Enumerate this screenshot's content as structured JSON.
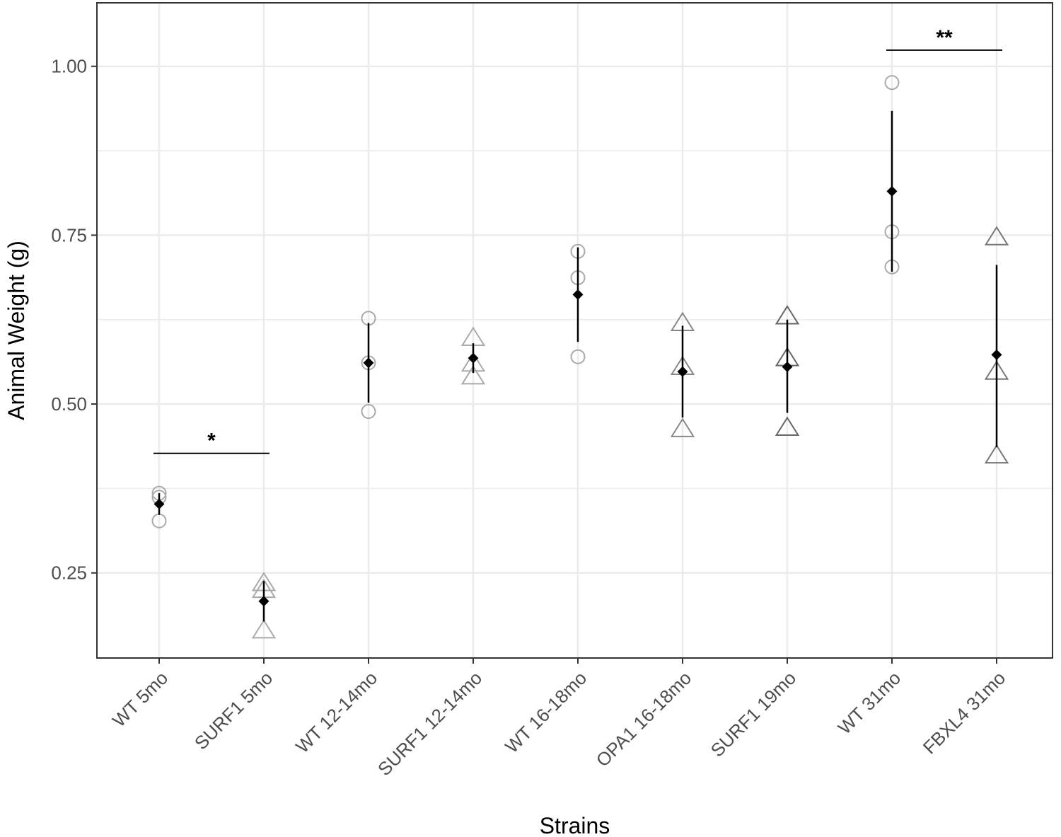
{
  "chart_data": {
    "type": "scatter",
    "title": "",
    "xlabel": "Strains",
    "ylabel": "Animal Weight (g)",
    "ylim": [
      0.124,
      1.094
    ],
    "yticks": [
      0.25,
      0.5,
      0.75,
      1.0
    ],
    "ytick_labels": [
      "0.25",
      "0.50",
      "0.75",
      "1.00"
    ],
    "grid": true,
    "categories": [
      "WT 5mo",
      "SURF1 5mo",
      "WT 12-14mo",
      "SURF1 12-14mo",
      "WT 16-18mo",
      "OPA1 16-18mo",
      "SURF1 19mo",
      "WT 31mo",
      "FBXL4 31mo"
    ],
    "groups": [
      {
        "category": "WT 5mo",
        "marker": "circle",
        "points": [
          0.368,
          0.362,
          0.327
        ],
        "mean": 0.352,
        "error": [
          0.336,
          0.368
        ],
        "color": "#aaaaaa"
      },
      {
        "category": "SURF1 5mo",
        "marker": "triangle",
        "points": [
          0.235,
          0.225,
          0.165
        ],
        "mean": 0.208,
        "error": [
          0.178,
          0.238
        ],
        "color": "#aaaaaa"
      },
      {
        "category": "WT 12-14mo",
        "marker": "circle",
        "points": [
          0.627,
          0.561,
          0.489
        ],
        "mean": 0.561,
        "error": [
          0.502,
          0.62
        ],
        "color": "#aaaaaa"
      },
      {
        "category": "SURF1 12-14mo",
        "marker": "triangle",
        "points": [
          0.598,
          0.56,
          0.541
        ],
        "mean": 0.568,
        "error": [
          0.546,
          0.59
        ],
        "color": "#aaaaaa"
      },
      {
        "category": "WT 16-18mo",
        "marker": "circle",
        "points": [
          0.726,
          0.687,
          0.57
        ],
        "mean": 0.662,
        "error": [
          0.592,
          0.732
        ],
        "color": "#aaaaaa"
      },
      {
        "category": "OPA1 16-18mo",
        "marker": "triangle",
        "points": [
          0.62,
          0.555,
          0.463
        ],
        "mean": 0.548,
        "error": [
          0.48,
          0.616
        ],
        "color": "#888888"
      },
      {
        "category": "SURF1 19mo",
        "marker": "triangle",
        "points": [
          0.63,
          0.568,
          0.465
        ],
        "mean": 0.555,
        "error": [
          0.487,
          0.625
        ],
        "color": "#666666"
      },
      {
        "category": "WT 31mo",
        "marker": "circle",
        "points": [
          0.976,
          0.755,
          0.703
        ],
        "mean": 0.815,
        "error": [
          0.696,
          0.934
        ],
        "color": "#aaaaaa"
      },
      {
        "category": "FBXL4 31mo",
        "marker": "triangle",
        "points": [
          0.747,
          0.548,
          0.424
        ],
        "mean": 0.573,
        "error": [
          0.436,
          0.706
        ],
        "color": "#777777"
      }
    ],
    "significance": [
      {
        "from": "WT 5mo",
        "to": "SURF1 5mo",
        "y": 0.427,
        "label": "*"
      },
      {
        "from": "WT 31mo",
        "to": "FBXL4 31mo",
        "y": 1.024,
        "label": "**"
      }
    ],
    "mean_marker": "diamond",
    "mean_color": "#000000",
    "gridline_color": "#ebebeb",
    "border_color": "#333333"
  }
}
